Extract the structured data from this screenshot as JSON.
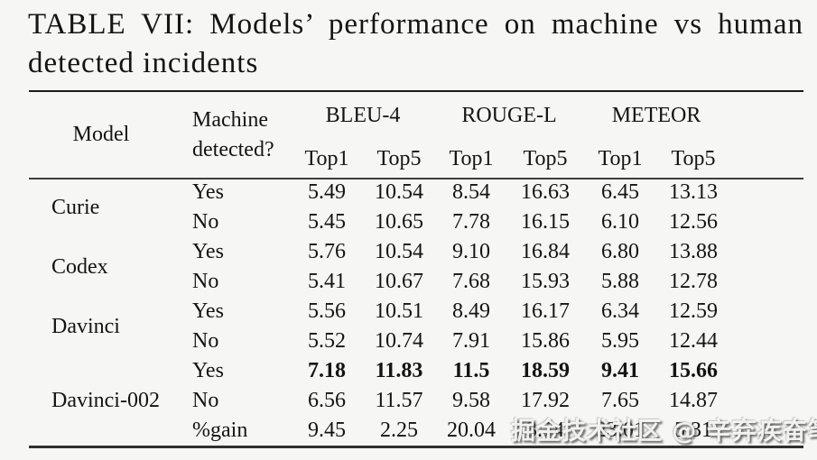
{
  "page": {
    "background": "#f6f6f4",
    "text_color": "#141414"
  },
  "caption": {
    "line1": "TABLE VII: Models’ performance on machine vs human",
    "line2": "detected incidents"
  },
  "table": {
    "headers": {
      "model": "Model",
      "machine_line1": "Machine",
      "machine_line2": "detected?"
    },
    "metric_groups": [
      {
        "label": "BLEU-4",
        "sub": [
          "Top1",
          "Top5"
        ]
      },
      {
        "label": "ROUGE-L",
        "sub": [
          "Top1",
          "Top5"
        ]
      },
      {
        "label": "METEOR",
        "sub": [
          "Top1",
          "Top5"
        ]
      }
    ],
    "model_groups": [
      {
        "name": "Curie",
        "rows": [
          {
            "detected": "Yes",
            "values": [
              "5.49",
              "10.54",
              "8.54",
              "16.63",
              "6.45",
              "13.13"
            ]
          },
          {
            "detected": "No",
            "values": [
              "5.45",
              "10.65",
              "7.78",
              "16.15",
              "6.10",
              "12.56"
            ]
          }
        ]
      },
      {
        "name": "Codex",
        "rows": [
          {
            "detected": "Yes",
            "values": [
              "5.76",
              "10.54",
              "9.10",
              "16.84",
              "6.80",
              "13.88"
            ]
          },
          {
            "detected": "No",
            "values": [
              "5.41",
              "10.67",
              "7.68",
              "15.93",
              "5.88",
              "12.78"
            ]
          }
        ]
      },
      {
        "name": "Davinci",
        "rows": [
          {
            "detected": "Yes",
            "values": [
              "5.56",
              "10.51",
              "8.49",
              "16.17",
              "6.34",
              "12.59"
            ]
          },
          {
            "detected": "No",
            "values": [
              "5.52",
              "10.74",
              "7.91",
              "15.86",
              "5.95",
              "12.44"
            ]
          }
        ]
      },
      {
        "name": "Davinci-002",
        "rows": [
          {
            "detected": "Yes",
            "bold": true,
            "values": [
              "7.18",
              "11.83",
              "11.5",
              "18.59",
              "9.41",
              "15.66"
            ]
          },
          {
            "detected": "No",
            "values": [
              "6.56",
              "11.57",
              "9.58",
              "17.92",
              "7.65",
              "14.87"
            ]
          },
          {
            "detected": "%gain",
            "values": [
              "9.45",
              "2.25",
              "20.04",
              "3.74",
              "23.01",
              "5.31"
            ]
          }
        ]
      }
    ]
  },
  "watermark": {
    "text": "掘金技术社区 @ 辛弃疾奋笔"
  }
}
